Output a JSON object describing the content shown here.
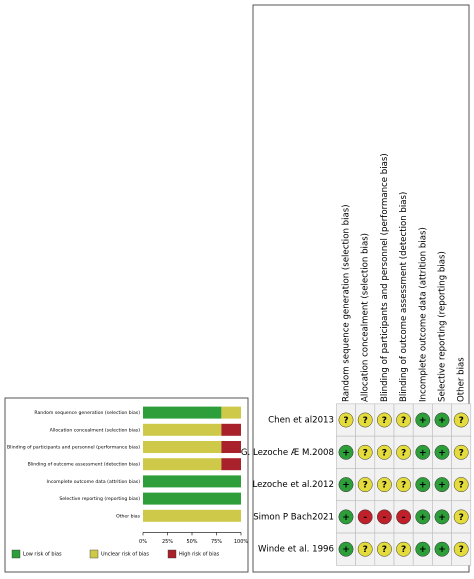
{
  "chart_data": {
    "type": "stacked-bar-horizontal",
    "categories": [
      "Random sequence generation (selection bias)",
      "Allocation concealment (selection bias)",
      "Blinding of participants and personnel (performance bias)",
      "Blinding of outcome assessment (detection bias)",
      "Incomplete outcome data (attrition bias)",
      "Selective reporting (reporting bias)",
      "Other bias"
    ],
    "series": [
      {
        "name": "Low risk of bias",
        "color": "#2e9e3a",
        "values": [
          80,
          0,
          0,
          0,
          100,
          100,
          0
        ]
      },
      {
        "name": "Unclear risk of bias",
        "color": "#cfc94a",
        "values": [
          20,
          80,
          80,
          80,
          0,
          0,
          100
        ]
      },
      {
        "name": "High risk of bias",
        "color": "#a8212b",
        "values": [
          0,
          20,
          20,
          20,
          0,
          0,
          0
        ]
      }
    ],
    "xlim": [
      0,
      100
    ],
    "xticks": [
      {
        "value": 0,
        "label": "0%"
      },
      {
        "value": 25,
        "label": "25%"
      },
      {
        "value": 50,
        "label": "50%"
      },
      {
        "value": 75,
        "label": "75%"
      },
      {
        "value": 100,
        "label": "100%"
      }
    ],
    "legend": "bottom"
  },
  "table": {
    "columns": [
      "Random sequence generation (selection bias)",
      "Allocation concealment (selection bias)",
      "Blinding of participants and personnel (performance bias)",
      "Blinding of outcome assessment (detection bias)",
      "Incomplete outcome data (attrition bias)",
      "Selective reporting (reporting bias)",
      "Other bias"
    ],
    "rows": [
      {
        "study": "Chen et al2013",
        "judgments": [
          "?",
          "?",
          "?",
          "?",
          "+",
          "+",
          "?"
        ]
      },
      {
        "study": "G. Lezoche Æ M.2008",
        "judgments": [
          "+",
          "?",
          "?",
          "?",
          "+",
          "+",
          "?"
        ]
      },
      {
        "study": "Lezoche et al.2012",
        "judgments": [
          "+",
          "?",
          "?",
          "?",
          "+",
          "+",
          "?"
        ]
      },
      {
        "study": "Simon P Bach2021",
        "judgments": [
          "+",
          "-",
          "-",
          "-",
          "+",
          "+",
          "?"
        ]
      },
      {
        "study": "Winde et al. 1996",
        "judgments": [
          "+",
          "?",
          "?",
          "?",
          "+",
          "+",
          "?"
        ]
      }
    ],
    "symbol_colors": {
      "+": "#2e9e3a",
      "?": "#e3dc3c",
      "-": "#c0202a"
    }
  }
}
